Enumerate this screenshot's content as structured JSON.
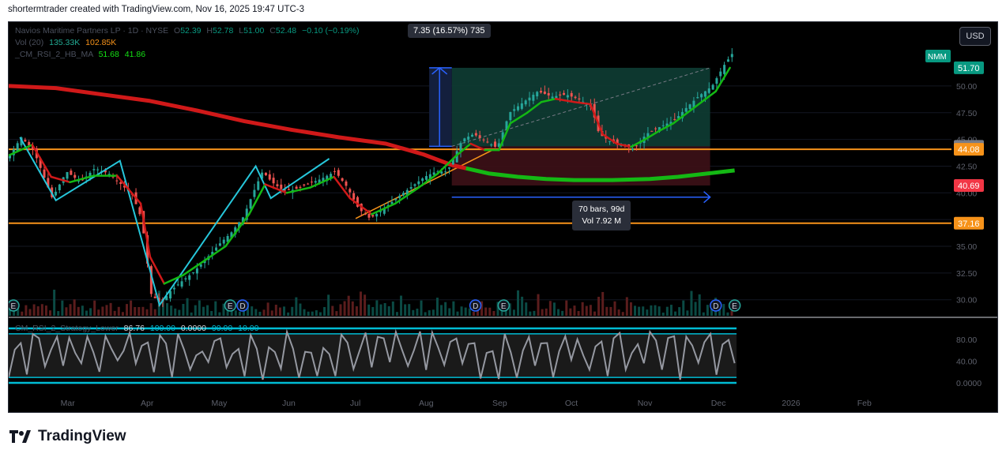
{
  "header": {
    "author_line": "shortermtrader created with TradingView.com, Nov 16, 2025 19:47 UTC-3"
  },
  "top_right": {
    "currency_button": "USD",
    "symbol_badge": "NMM"
  },
  "legend": {
    "symbol_line": {
      "name": "Navios Maritime Partners LP · 1D · NYSE",
      "o_label": "O",
      "o": "52.39",
      "h_label": "H",
      "h": "52.78",
      "l_label": "L",
      "l": "51.00",
      "c_label": "C",
      "c": "52.48",
      "change": "−0.10 (−0.19%)"
    },
    "vol_line": {
      "name": "Vol (20)",
      "v1": "135.33K",
      "v2": "102.85K"
    },
    "rsi_line": {
      "name": "_CM_RSI_2_HB_MA",
      "v1": "51.68",
      "v2": "41.86"
    },
    "osc_line": {
      "name": "CM_RSI_2_Strategy_Lower",
      "v1": "86.76",
      "v2": "100.00",
      "v3": "0.0000",
      "v4": "90.00",
      "v5": "10.00"
    }
  },
  "measure": {
    "top_label": "7.35 (16.57%) 735",
    "range_line1": "70 bars, 99d",
    "range_line2": "Vol 7.92 M"
  },
  "colors": {
    "up": "#26a69a",
    "down": "#ef5350",
    "orange": "#f7931a",
    "ma_red": "#d01919",
    "ma_green": "#14b814",
    "blue": "#2962ff",
    "osc": "#9598a1"
  },
  "chart_data": {
    "type": "candlestick",
    "symbol": "NMM",
    "interval": "1D",
    "ylim": [
      28.5,
      54.5
    ],
    "y_ticks": [
      "30.00",
      "32.50",
      "35.00",
      "37.50",
      "40.00",
      "42.50",
      "45.00",
      "47.50",
      "50.00"
    ],
    "x_ticks": [
      "Mar",
      "Apr",
      "May",
      "Jun",
      "Jul",
      "Aug",
      "Sep",
      "Oct",
      "Nov",
      "Dec",
      "2026",
      "Feb"
    ],
    "x_tick_pos": [
      0.055,
      0.14,
      0.215,
      0.29,
      0.362,
      0.435,
      0.513,
      0.59,
      0.667,
      0.745,
      0.82,
      0.9
    ],
    "price_labels": [
      {
        "value": 51.7,
        "text": "51.70",
        "color": "#089981"
      },
      {
        "value": 44.35,
        "text": "44.35",
        "color": "#787b86"
      },
      {
        "value": 44.08,
        "text": "44.08",
        "color": "#f7931a"
      },
      {
        "value": 40.69,
        "text": "40.69",
        "color": "#f23645"
      },
      {
        "value": 37.16,
        "text": "37.16",
        "color": "#f7931a"
      }
    ],
    "horizontal_levels": [
      44.08,
      37.16
    ],
    "close_path": [
      [
        0.0,
        43.5
      ],
      [
        0.012,
        45.2
      ],
      [
        0.025,
        44.0
      ],
      [
        0.045,
        39.5
      ],
      [
        0.06,
        42.0
      ],
      [
        0.075,
        41.0
      ],
      [
        0.09,
        42.3
      ],
      [
        0.105,
        41.8
      ],
      [
        0.118,
        40.8
      ],
      [
        0.13,
        39.8
      ],
      [
        0.14,
        37.5
      ],
      [
        0.15,
        30.5
      ],
      [
        0.16,
        29.6
      ],
      [
        0.17,
        30.8
      ],
      [
        0.182,
        31.7
      ],
      [
        0.195,
        32.6
      ],
      [
        0.21,
        34.0
      ],
      [
        0.222,
        35.2
      ],
      [
        0.235,
        36.3
      ],
      [
        0.248,
        37.8
      ],
      [
        0.258,
        40.0
      ],
      [
        0.268,
        42.0
      ],
      [
        0.278,
        41.0
      ],
      [
        0.29,
        40.2
      ],
      [
        0.302,
        40.3
      ],
      [
        0.315,
        40.8
      ],
      [
        0.33,
        41.3
      ],
      [
        0.345,
        42.0
      ],
      [
        0.358,
        40.5
      ],
      [
        0.37,
        38.5
      ],
      [
        0.382,
        37.6
      ],
      [
        0.395,
        38.4
      ],
      [
        0.41,
        39.5
      ],
      [
        0.425,
        40.5
      ],
      [
        0.44,
        41.5
      ],
      [
        0.452,
        42.0
      ],
      [
        0.464,
        42.0
      ],
      [
        0.472,
        43.5
      ],
      [
        0.48,
        45.0
      ],
      [
        0.492,
        45.5
      ],
      [
        0.505,
        44.8
      ],
      [
        0.517,
        44.2
      ],
      [
        0.53,
        47.5
      ],
      [
        0.545,
        48.5
      ],
      [
        0.56,
        49.5
      ],
      [
        0.575,
        49.0
      ],
      [
        0.59,
        49.2
      ],
      [
        0.605,
        48.7
      ],
      [
        0.617,
        48.0
      ],
      [
        0.625,
        45.5
      ],
      [
        0.637,
        44.8
      ],
      [
        0.65,
        44.5
      ],
      [
        0.662,
        44.1
      ],
      [
        0.675,
        45.5
      ],
      [
        0.69,
        46.2
      ],
      [
        0.705,
        46.8
      ],
      [
        0.718,
        48.0
      ],
      [
        0.73,
        49.0
      ],
      [
        0.745,
        50.0
      ],
      [
        0.758,
        52.0
      ],
      [
        0.766,
        53.0
      ],
      [
        0.77,
        52.48
      ]
    ],
    "ma_200_path": [
      [
        0.0,
        50.0
      ],
      [
        0.05,
        49.8
      ],
      [
        0.1,
        49.2
      ],
      [
        0.15,
        48.6
      ],
      [
        0.2,
        47.7
      ],
      [
        0.25,
        46.7
      ],
      [
        0.3,
        45.9
      ],
      [
        0.35,
        45.2
      ],
      [
        0.4,
        44.6
      ],
      [
        0.44,
        43.6
      ],
      [
        0.47,
        42.6
      ],
      [
        0.485,
        42.3
      ]
    ],
    "ma_200_continuation": [
      [
        0.485,
        42.3
      ],
      [
        0.51,
        41.8
      ],
      [
        0.54,
        41.5
      ],
      [
        0.57,
        41.3
      ],
      [
        0.6,
        41.2
      ],
      [
        0.64,
        41.2
      ],
      [
        0.68,
        41.3
      ],
      [
        0.71,
        41.5
      ],
      [
        0.73,
        41.7
      ],
      [
        0.77,
        42.1
      ]
    ],
    "sma_path": [
      [
        0.0,
        43.5
      ],
      [
        0.025,
        44.5
      ],
      [
        0.045,
        41.5
      ],
      [
        0.065,
        41.0
      ],
      [
        0.09,
        41.6
      ],
      [
        0.115,
        41.6
      ],
      [
        0.14,
        39.0
      ],
      [
        0.15,
        34.0
      ],
      [
        0.165,
        31.5
      ],
      [
        0.185,
        32.3
      ],
      [
        0.205,
        33.5
      ],
      [
        0.23,
        35.0
      ],
      [
        0.255,
        38.0
      ],
      [
        0.272,
        40.8
      ],
      [
        0.295,
        40.0
      ],
      [
        0.32,
        40.5
      ],
      [
        0.345,
        41.5
      ],
      [
        0.362,
        39.5
      ],
      [
        0.385,
        38.0
      ],
      [
        0.41,
        39.0
      ],
      [
        0.435,
        40.5
      ],
      [
        0.455,
        41.8
      ],
      [
        0.475,
        43.5
      ],
      [
        0.49,
        44.6
      ],
      [
        0.505,
        44.0
      ],
      [
        0.52,
        44.0
      ],
      [
        0.532,
        46.5
      ],
      [
        0.55,
        47.5
      ],
      [
        0.565,
        48.5
      ],
      [
        0.58,
        48.8
      ],
      [
        0.6,
        48.5
      ],
      [
        0.617,
        48.3
      ],
      [
        0.63,
        45.5
      ],
      [
        0.645,
        44.6
      ],
      [
        0.66,
        44.3
      ],
      [
        0.675,
        45.0
      ],
      [
        0.69,
        45.8
      ],
      [
        0.705,
        46.5
      ],
      [
        0.72,
        47.5
      ],
      [
        0.735,
        48.5
      ],
      [
        0.75,
        49.5
      ],
      [
        0.765,
        51.7
      ]
    ],
    "zigzag": [
      [
        0.012,
        45.2
      ],
      [
        0.05,
        39.3
      ],
      [
        0.118,
        43.0
      ],
      [
        0.16,
        29.5
      ],
      [
        0.262,
        42.5
      ],
      [
        0.278,
        39.5
      ],
      [
        0.34,
        43.2
      ]
    ],
    "trendline": [
      [
        0.368,
        37.6
      ],
      [
        0.513,
        44.0
      ]
    ],
    "measure": {
      "x_start": 0.47,
      "x_end": 0.744,
      "price_from": 44.35,
      "price_to": 51.7,
      "red_bottom": 40.69,
      "change": "7.35 (16.57%) 735"
    },
    "volume_bars": 180,
    "osc_markers": [
      "D",
      "E",
      "D",
      "E",
      "D",
      "E"
    ]
  }
}
